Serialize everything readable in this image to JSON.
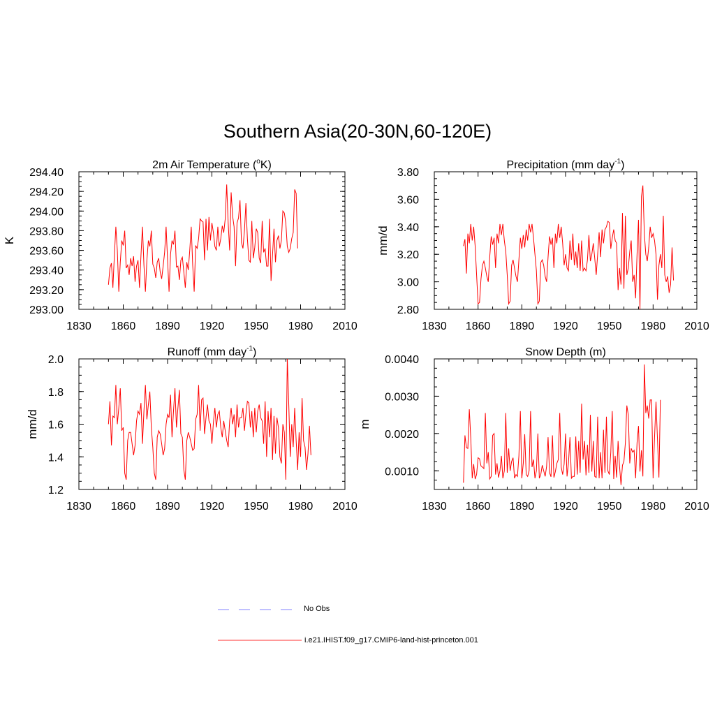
{
  "title": "Southern Asia(20-30N,60-120E)",
  "colors": {
    "model": "#ff0000",
    "obs": "#9a9aff",
    "axis": "#000000"
  },
  "legend": {
    "obs_label": "No Obs",
    "model_label": "i.e21.IHIST.f09_g17.CMIP6-land-hist-princeton.001"
  },
  "chart_data": [
    {
      "type": "line",
      "title_main": "2m Air Temperature (",
      "title_sup": "o",
      "title_tail": "K)",
      "ylabel": "K",
      "xlim": [
        1830,
        2010
      ],
      "ylim": [
        293.0,
        294.4
      ],
      "xticks": [
        "1830",
        "1860",
        "1890",
        "1920",
        "1950",
        "1980",
        "2010"
      ],
      "yticks": [
        "293.00",
        "293.20",
        "293.40",
        "293.60",
        "293.80",
        "294.00",
        "294.20",
        "294.40"
      ],
      "series": [
        {
          "x_start": 1850,
          "values": [
            293.25,
            293.42,
            293.47,
            293.22,
            293.55,
            293.84,
            293.6,
            293.18,
            293.48,
            293.7,
            293.65,
            293.8,
            293.42,
            293.45,
            293.35,
            293.52,
            293.44,
            293.54,
            293.28,
            293.44,
            293.5,
            293.22,
            293.55,
            293.84,
            293.45,
            293.18,
            293.5,
            293.7,
            293.64,
            293.8,
            293.46,
            293.42,
            293.32,
            293.48,
            293.52,
            293.38,
            293.31,
            293.44,
            293.58,
            293.84,
            293.5,
            293.18,
            293.56,
            293.7,
            293.66,
            293.8,
            293.43,
            293.44,
            293.3,
            293.5,
            293.53,
            293.38,
            293.22,
            293.48,
            293.4,
            293.6,
            293.84,
            293.45,
            293.18,
            293.65,
            293.62,
            293.72,
            293.92,
            293.9,
            293.89,
            293.5,
            293.92,
            293.6,
            293.94,
            293.7,
            293.88,
            293.78,
            293.64,
            293.6,
            293.84,
            293.64,
            293.72,
            293.85,
            293.78,
            293.92,
            294.27,
            293.88,
            293.6,
            294.19,
            293.95,
            293.84,
            293.44,
            293.88,
            293.93,
            294.11,
            293.68,
            293.62,
            293.8,
            294.08,
            293.72,
            293.5,
            293.48,
            293.9,
            293.52,
            293.63,
            293.82,
            293.78,
            293.52,
            293.47,
            293.9,
            293.58,
            293.62,
            293.44,
            293.44,
            293.92,
            293.29,
            293.55,
            293.82,
            293.48,
            293.7,
            293.75,
            293.62,
            293.7,
            294.0,
            293.98,
            293.88,
            293.64,
            293.58,
            293.62,
            293.72,
            293.78,
            294.22,
            294.18,
            293.62
          ]
        }
      ]
    },
    {
      "type": "line",
      "title_main": "Precipitation (mm day",
      "title_sup": "-1",
      "title_tail": ")",
      "ylabel": "mm/d",
      "xlim": [
        1830,
        2010
      ],
      "ylim": [
        2.8,
        3.8
      ],
      "xticks": [
        "1830",
        "1860",
        "1890",
        "1920",
        "1950",
        "1980",
        "2010"
      ],
      "yticks": [
        "2.80",
        "3.00",
        "3.20",
        "3.40",
        "3.60",
        "3.80"
      ],
      "series": [
        {
          "x_start": 1850,
          "values": [
            3.26,
            3.31,
            3.06,
            3.35,
            3.28,
            3.42,
            3.3,
            3.4,
            3.26,
            3.05,
            2.84,
            2.85,
            3.02,
            3.12,
            3.15,
            3.1,
            3.04,
            3.0,
            3.18,
            3.33,
            3.27,
            3.32,
            3.1,
            3.35,
            3.28,
            3.42,
            3.34,
            3.42,
            3.3,
            3.22,
            3.05,
            2.84,
            2.86,
            3.12,
            3.16,
            3.1,
            3.04,
            3.0,
            3.16,
            3.32,
            3.24,
            3.34,
            3.25,
            3.38,
            3.3,
            3.42,
            3.36,
            3.42,
            3.32,
            3.2,
            3.08,
            2.84,
            2.86,
            3.14,
            3.16,
            3.12,
            3.04,
            3.0,
            3.18,
            3.33,
            3.27,
            3.32,
            3.1,
            3.35,
            3.28,
            3.42,
            3.32,
            3.4,
            3.28,
            3.12,
            3.2,
            3.1,
            3.08,
            3.3,
            3.16,
            3.35,
            3.12,
            3.22,
            3.1,
            3.28,
            3.08,
            3.3,
            3.08,
            3.1,
            3.08,
            3.16,
            3.34,
            3.15,
            3.2,
            3.28,
            3.17,
            3.05,
            3.2,
            3.36,
            3.18,
            3.38,
            3.28,
            3.38,
            3.4,
            3.44,
            3.43,
            3.24,
            3.32,
            3.38,
            3.3,
            3.28,
            2.94,
            3.1,
            2.98,
            3.5,
            2.95,
            3.48,
            3.05,
            3.1,
            3.22,
            3.3,
            3.0,
            3.05,
            2.88,
            3.2,
            3.45,
            2.8,
            3.62,
            3.7,
            3.35,
            3.2,
            3.15,
            3.25,
            3.4,
            3.32,
            3.35,
            3.3,
            3.2,
            2.87,
            3.12,
            3.2,
            3.1,
            3.48,
            3.05,
            3.0,
            3.04,
            2.92,
            2.98,
            3.25,
            3.01
          ]
        }
      ]
    },
    {
      "type": "line",
      "title_main": "Runoff (mm day",
      "title_sup": "-1",
      "title_tail": ")",
      "ylabel": "mm/d",
      "xlim": [
        1830,
        2010
      ],
      "ylim": [
        1.2,
        2.0
      ],
      "xticks": [
        "1830",
        "1860",
        "1890",
        "1920",
        "1950",
        "1980",
        "2010"
      ],
      "yticks": [
        "1.2",
        "1.4",
        "1.6",
        "1.8",
        "2.0"
      ],
      "series": [
        {
          "x_start": 1850,
          "values": [
            1.6,
            1.74,
            1.47,
            1.65,
            1.64,
            1.84,
            1.6,
            1.7,
            1.82,
            1.56,
            1.58,
            1.3,
            1.26,
            1.5,
            1.55,
            1.55,
            1.48,
            1.41,
            1.47,
            1.62,
            1.68,
            1.66,
            1.73,
            1.48,
            1.68,
            1.84,
            1.63,
            1.72,
            1.8,
            1.58,
            1.46,
            1.3,
            1.26,
            1.52,
            1.56,
            1.54,
            1.48,
            1.41,
            1.45,
            1.6,
            1.66,
            1.64,
            1.78,
            1.52,
            1.68,
            1.82,
            1.58,
            1.7,
            1.81,
            1.54,
            1.52,
            1.32,
            1.26,
            1.5,
            1.55,
            1.52,
            1.48,
            1.44,
            1.45,
            1.63,
            1.66,
            1.84,
            1.56,
            1.75,
            1.76,
            1.54,
            1.64,
            1.72,
            1.62,
            1.6,
            1.48,
            1.61,
            1.7,
            1.58,
            1.66,
            1.68,
            1.58,
            1.52,
            1.62,
            1.56,
            1.5,
            1.46,
            1.62,
            1.7,
            1.6,
            1.66,
            1.52,
            1.72,
            1.58,
            1.64,
            1.64,
            1.7,
            1.56,
            1.66,
            1.74,
            1.73,
            1.58,
            1.68,
            1.52,
            1.7,
            1.55,
            1.68,
            1.72,
            1.64,
            1.62,
            1.48,
            1.74,
            1.4,
            1.68,
            1.52,
            1.7,
            1.38,
            1.65,
            1.42,
            1.64,
            1.58,
            1.4,
            1.36,
            1.6,
            1.55,
            1.26,
            2.0,
            1.72,
            1.4,
            1.6,
            1.46,
            1.7,
            1.5,
            1.32,
            1.55,
            1.4,
            1.76,
            1.5,
            1.46,
            1.32,
            1.42,
            1.59,
            1.41
          ]
        }
      ]
    },
    {
      "type": "line",
      "title_main": "Snow Depth (m)",
      "title_sup": "",
      "title_tail": "",
      "ylabel": "m",
      "xlim": [
        1830,
        2010
      ],
      "ylim": [
        0.0005,
        0.004
      ],
      "xticks": [
        "1830",
        "1860",
        "1890",
        "1920",
        "1950",
        "1980",
        "2010"
      ],
      "yticks": [
        "0.0010",
        "0.0020",
        "0.0030",
        "0.0040"
      ],
      "ytick_values": [
        0.001,
        0.002,
        0.003,
        0.004
      ],
      "series": [
        {
          "x_start": 1850,
          "values": [
            0.00068,
            0.00195,
            0.00162,
            0.0016,
            0.00265,
            0.00188,
            0.0008,
            0.00118,
            0.00078,
            0.0009,
            0.00135,
            0.00132,
            0.00113,
            0.0011,
            0.00106,
            0.00255,
            0.0012,
            0.0015,
            0.00078,
            0.00085,
            0.00195,
            0.002,
            0.0009,
            0.0012,
            0.00082,
            0.001,
            0.0014,
            0.0008,
            0.001,
            0.00255,
            0.00095,
            0.0016,
            0.001,
            0.00125,
            0.00135,
            0.0008,
            0.0009,
            0.00085,
            0.0014,
            0.0026,
            0.0008,
            0.0012,
            0.00198,
            0.0009,
            0.00085,
            0.001,
            0.0026,
            0.0011,
            0.0013,
            0.0008,
            0.001,
            0.002,
            0.0008,
            0.0009,
            0.00115,
            0.001,
            0.00085,
            0.00112,
            0.0019,
            0.00095,
            0.00084,
            0.00195,
            0.00082,
            0.00098,
            0.0012,
            0.0013,
            0.00255,
            0.0011,
            0.0009,
            0.00118,
            0.002,
            0.00085,
            0.00122,
            0.0019,
            0.0008,
            0.00085,
            0.00085,
            0.00192,
            0.0009,
            0.0018,
            0.00095,
            0.0028,
            0.0013,
            0.0018,
            0.00088,
            0.0017,
            0.00095,
            0.0025,
            0.00098,
            0.0018,
            0.00085,
            0.00082,
            0.00245,
            0.0008,
            0.0015,
            0.0008,
            0.0021,
            0.00095,
            0.00245,
            0.001,
            0.0009,
            0.0015,
            0.0026,
            0.00078,
            0.0014,
            0.00082,
            0.0018,
            0.00112,
            0.00062,
            0.00115,
            0.00125,
            0.00175,
            0.00275,
            0.0025,
            0.0012,
            0.0016,
            0.0015,
            0.00155,
            0.0008,
            0.00175,
            0.0022,
            0.00098,
            0.00155,
            0.00085,
            0.00385,
            0.00255,
            0.00275,
            0.0024,
            0.0029,
            0.0029,
            0.0008,
            0.0019,
            0.00285,
            0.00185,
            0.00082,
            0.0029
          ]
        }
      ]
    }
  ]
}
